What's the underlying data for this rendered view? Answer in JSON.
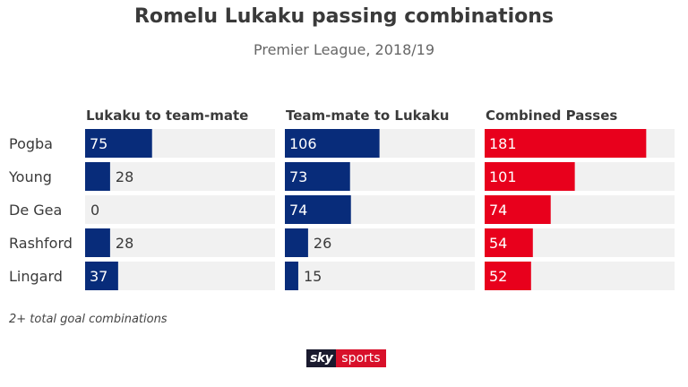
{
  "header": {
    "title": "Romelu Lukaku passing combinations",
    "subtitle": "Premier League, 2018/19"
  },
  "footnote": "2+ total goal combinations",
  "logo": {
    "part1": "sky",
    "part2": "sports"
  },
  "colors": {
    "navy": "#082c7a",
    "red": "#e8001c",
    "track": "#f1f1f1",
    "text": "#3a3a3a"
  },
  "chart_data": {
    "type": "bar",
    "orientation": "horizontal",
    "title": "Romelu Lukaku passing combinations",
    "subtitle": "Premier League, 2018/19",
    "categories": [
      "Pogba",
      "Young",
      "De Gea",
      "Rashford",
      "Lingard"
    ],
    "series": [
      {
        "name": "Lukaku to team-mate",
        "values": [
          75,
          28,
          0,
          28,
          37
        ],
        "color": "#082c7a"
      },
      {
        "name": "Team-mate to Lukaku",
        "values": [
          106,
          73,
          74,
          26,
          15
        ],
        "color": "#082c7a"
      },
      {
        "name": "Combined Passes",
        "values": [
          181,
          101,
          74,
          54,
          52
        ],
        "color": "#e8001c"
      }
    ],
    "xlim": [
      0,
      200
    ],
    "grid": false,
    "legend": "none"
  }
}
